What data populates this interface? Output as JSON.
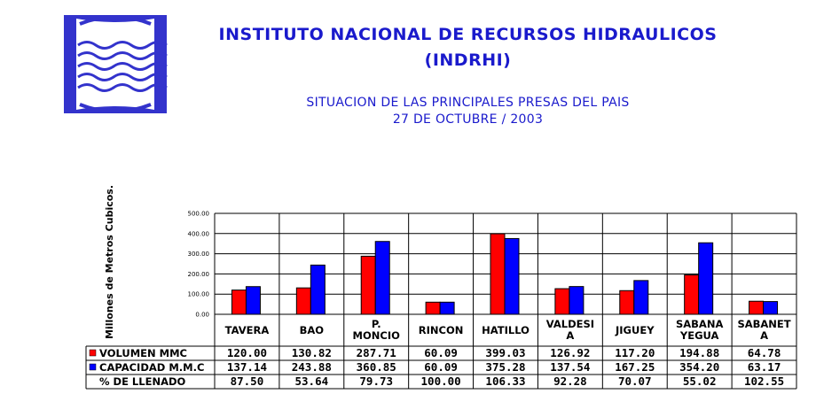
{
  "header": {
    "title_line1": "INSTITUTO NACIONAL DE RECURSOS HIDRAULICOS",
    "title_line2": "(INDRHI)",
    "subtitle_line1": "SITUACION DE LAS PRINCIPALES PRESAS DEL PAIS",
    "subtitle_line2": "27 DE OCTUBRE / 2003"
  },
  "colors": {
    "title": "#1a1acc",
    "volumen": "#ff0000",
    "capacidad": "#0000ff",
    "logo": "#3333cc"
  },
  "chart_data": {
    "type": "bar",
    "ylabel": "Millones de Metros Cubicos.",
    "ylim": [
      0,
      500
    ],
    "yticks": [
      "0.00",
      "100.00",
      "200.00",
      "300.00",
      "400.00",
      "500.00"
    ],
    "grid": true,
    "categories": [
      [
        "TAVERA"
      ],
      [
        "BAO"
      ],
      [
        "P.",
        "MONCIO"
      ],
      [
        "RINCON"
      ],
      [
        "HATILLO"
      ],
      [
        "VALDESI",
        "A"
      ],
      [
        "JIGUEY"
      ],
      [
        "SABANA",
        "YEGUA"
      ],
      [
        "SABANET",
        "A"
      ]
    ],
    "series": [
      {
        "name": "VOLUMEN MMC",
        "color": "#ff0000",
        "values": [
          120.0,
          130.82,
          287.71,
          60.09,
          399.03,
          126.92,
          117.2,
          194.88,
          64.78
        ],
        "labels": [
          "120.00",
          "130.82",
          "287.71",
          "60.09",
          "399.03",
          "126.92",
          "117.20",
          "194.88",
          "64.78"
        ]
      },
      {
        "name": "CAPACIDAD M.M.C",
        "color": "#0000ff",
        "values": [
          137.14,
          243.88,
          360.85,
          60.09,
          375.28,
          137.54,
          167.25,
          354.2,
          63.17
        ],
        "labels": [
          "137.14",
          "243.88",
          "360.85",
          "60.09",
          "375.28",
          "137.54",
          "167.25",
          "354.20",
          "63.17"
        ]
      }
    ],
    "table_rows": [
      {
        "label": "% DE LLENADO",
        "labels": [
          "87.50",
          "53.64",
          "79.73",
          "100.00",
          "106.33",
          "92.28",
          "70.07",
          "55.02",
          "102.55"
        ]
      }
    ]
  }
}
